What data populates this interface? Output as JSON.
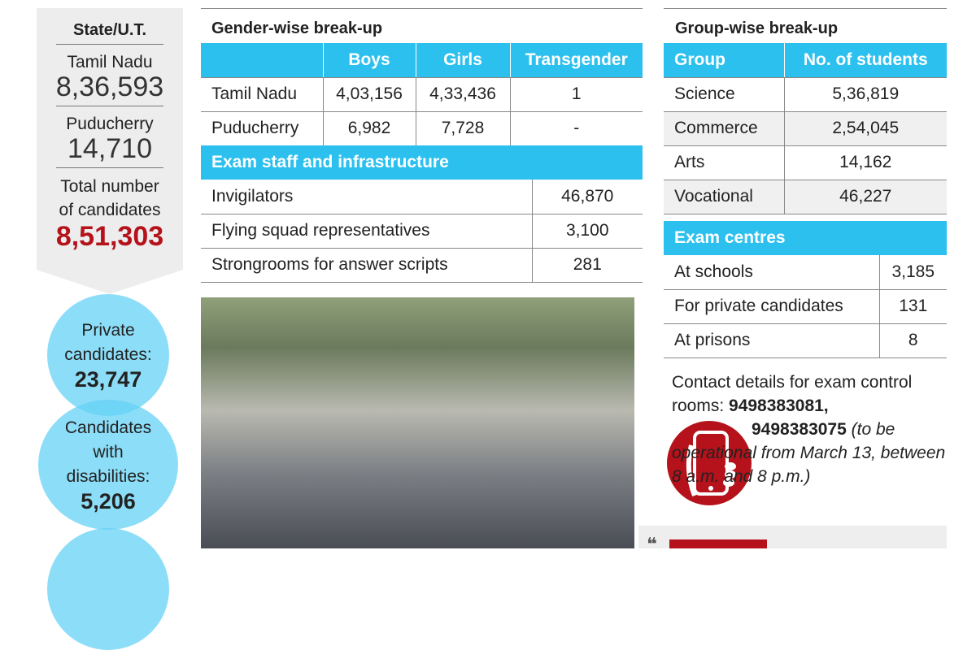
{
  "state_box": {
    "heading": "State/U.T.",
    "rows": [
      {
        "name": "Tamil Nadu",
        "value": "8,36,593"
      },
      {
        "name": "Puducherry",
        "value": "14,710"
      }
    ],
    "total_label_1": "Total number",
    "total_label_2": "of candidates",
    "total_value": "8,51,303"
  },
  "circles": [
    {
      "label_lines": [
        "Private",
        "candidates:"
      ],
      "value": "23,747"
    },
    {
      "label_lines": [
        "Candidates",
        "with",
        "disabilities:"
      ],
      "value": "5,206"
    }
  ],
  "gender": {
    "title": "Gender-wise break-up",
    "headers": [
      "",
      "Boys",
      "Girls",
      "Transgender"
    ],
    "rows": [
      [
        "Tamil Nadu",
        "4,03,156",
        "4,33,436",
        "1"
      ],
      [
        "Puducherry",
        "6,982",
        "7,728",
        "-"
      ]
    ]
  },
  "staff": {
    "title": "Exam staff and infrastructure",
    "rows": [
      [
        "Invigilators",
        "46,870"
      ],
      [
        "Flying squad representatives",
        "3,100"
      ],
      [
        "Strongrooms for answer scripts",
        "281"
      ]
    ]
  },
  "group": {
    "title": "Group-wise break-up",
    "headers": [
      "Group",
      "No. of students"
    ],
    "rows": [
      [
        "Science",
        "5,36,819"
      ],
      [
        "Commerce",
        "2,54,045"
      ],
      [
        "Arts",
        "14,162"
      ],
      [
        "Vocational",
        "46,227"
      ]
    ]
  },
  "centres": {
    "title": "Exam centres",
    "rows": [
      [
        "At schools",
        "3,185"
      ],
      [
        "For private candidates",
        "131"
      ],
      [
        "At prisons",
        "8"
      ]
    ]
  },
  "contact": {
    "text": "Contact details for exam control rooms: ",
    "phone1": "9498383081,",
    "phone2": "9498383075",
    "note": " (to be operational from March 13, between 8 a.m. and 8 p.m.)"
  },
  "colors": {
    "accent": "#2cc0ee",
    "red": "#b5121b",
    "circle": "#66d2f5"
  }
}
